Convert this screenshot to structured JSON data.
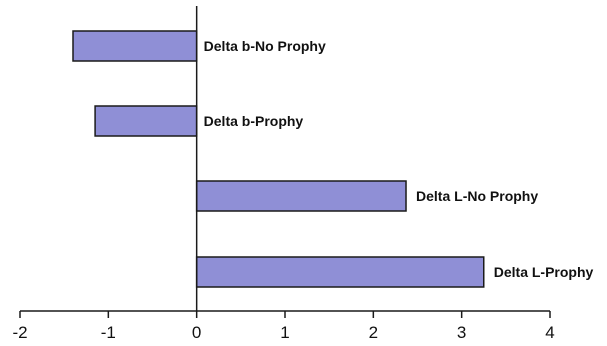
{
  "chart_data": {
    "type": "bar",
    "orientation": "horizontal",
    "categories": [
      "Delta b-No Prophy",
      "Delta b-Prophy",
      "Delta L-No Prophy",
      "Delta L-Prophy"
    ],
    "values": [
      -1.4,
      -1.15,
      2.37,
      3.25
    ],
    "xlim": [
      -2,
      4
    ],
    "xticks": [
      -2,
      -1,
      0,
      1,
      2,
      3,
      4
    ],
    "title": "",
    "xlabel": "",
    "ylabel": "",
    "grid": false,
    "legend": "none",
    "bar_color": "#8f8fd6",
    "label_placement": "right of zero line"
  }
}
